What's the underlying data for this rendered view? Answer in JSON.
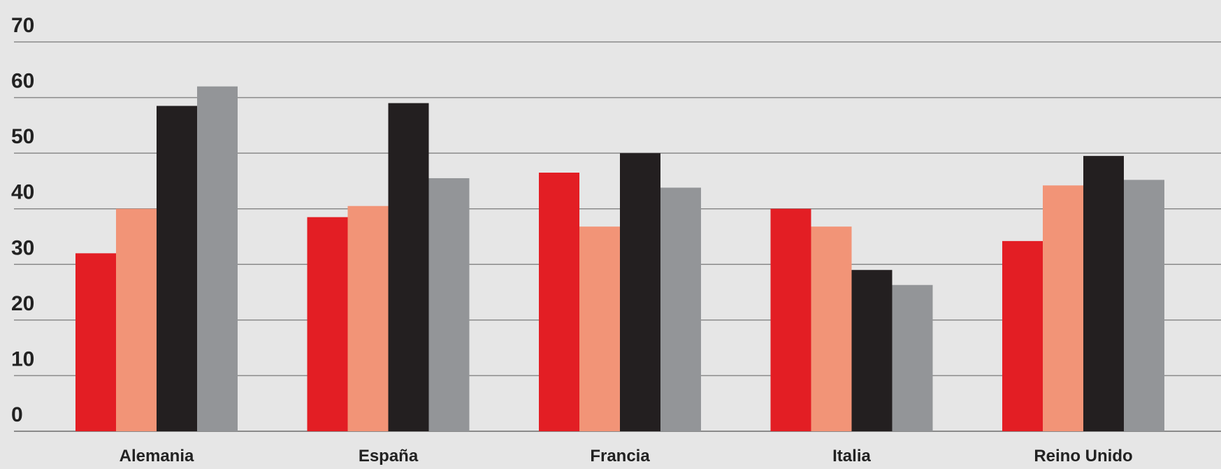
{
  "chart_data": {
    "type": "bar",
    "title": "",
    "xlabel": "",
    "ylabel": "",
    "ylim": [
      0,
      70
    ],
    "yticks": [
      0,
      10,
      20,
      30,
      40,
      50,
      60,
      70
    ],
    "grid": true,
    "legend": "none",
    "categories": [
      "Alemania",
      "España",
      "Francia",
      "Italia",
      "Reino Unido"
    ],
    "series": [
      {
        "color": "#e31e24",
        "values": [
          32,
          38.5,
          46.5,
          40,
          34.2
        ]
      },
      {
        "color": "#f29477",
        "values": [
          40,
          40.5,
          36.8,
          36.8,
          44.2
        ]
      },
      {
        "color": "#231f20",
        "values": [
          58.5,
          59,
          50,
          29,
          49.5
        ]
      },
      {
        "color": "#939598",
        "values": [
          62,
          45.5,
          43.8,
          26.3,
          45.2
        ]
      }
    ]
  },
  "colors": {
    "background": "#e6e6e6",
    "gridline": "#8a8a8a",
    "text": "#222222"
  }
}
